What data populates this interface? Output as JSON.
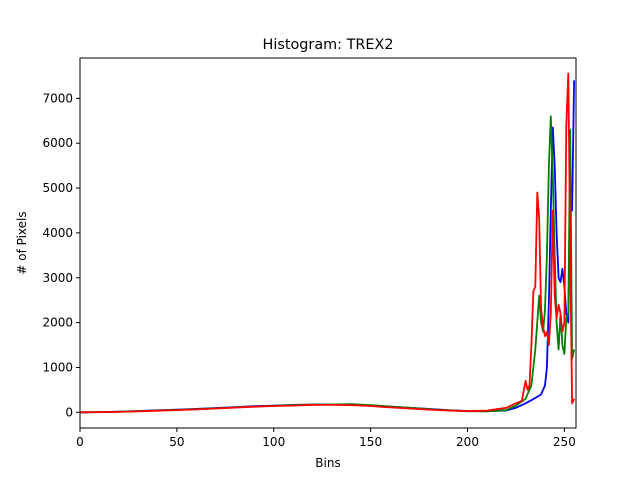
{
  "chart_data": {
    "type": "line",
    "title": "Histogram: TREX2",
    "xlabel": "Bins",
    "ylabel": "# of Pixels",
    "xlim": [
      0,
      256
    ],
    "ylim": [
      -350,
      7900
    ],
    "xticks": [
      0,
      50,
      100,
      150,
      200,
      250
    ],
    "yticks": [
      0,
      1000,
      2000,
      3000,
      4000,
      5000,
      6000,
      7000
    ],
    "grid": false,
    "legend": "none",
    "series": [
      {
        "color": "#0000ff",
        "points": [
          [
            0,
            0
          ],
          [
            10,
            5
          ],
          [
            20,
            15
          ],
          [
            30,
            30
          ],
          [
            40,
            45
          ],
          [
            50,
            60
          ],
          [
            60,
            75
          ],
          [
            70,
            95
          ],
          [
            80,
            115
          ],
          [
            90,
            135
          ],
          [
            100,
            150
          ],
          [
            110,
            165
          ],
          [
            120,
            175
          ],
          [
            130,
            175
          ],
          [
            140,
            170
          ],
          [
            150,
            150
          ],
          [
            160,
            125
          ],
          [
            170,
            100
          ],
          [
            180,
            75
          ],
          [
            190,
            50
          ],
          [
            200,
            30
          ],
          [
            210,
            25
          ],
          [
            220,
            40
          ],
          [
            225,
            100
          ],
          [
            230,
            200
          ],
          [
            235,
            320
          ],
          [
            238,
            400
          ],
          [
            240,
            600
          ],
          [
            241,
            1000
          ],
          [
            242,
            2500
          ],
          [
            243,
            4500
          ],
          [
            244,
            6350
          ],
          [
            245,
            5500
          ],
          [
            246,
            4000
          ],
          [
            247,
            3000
          ],
          [
            248,
            2900
          ],
          [
            249,
            3200
          ],
          [
            250,
            2800
          ],
          [
            251,
            2200
          ],
          [
            252,
            2000
          ],
          [
            253,
            4600
          ],
          [
            254,
            4500
          ],
          [
            255,
            7400
          ]
        ]
      },
      {
        "color": "#008000",
        "points": [
          [
            0,
            0
          ],
          [
            10,
            5
          ],
          [
            20,
            12
          ],
          [
            30,
            25
          ],
          [
            40,
            40
          ],
          [
            50,
            55
          ],
          [
            60,
            70
          ],
          [
            70,
            90
          ],
          [
            80,
            110
          ],
          [
            90,
            130
          ],
          [
            100,
            145
          ],
          [
            110,
            160
          ],
          [
            120,
            170
          ],
          [
            130,
            175
          ],
          [
            140,
            180
          ],
          [
            150,
            160
          ],
          [
            160,
            130
          ],
          [
            170,
            100
          ],
          [
            180,
            70
          ],
          [
            190,
            45
          ],
          [
            200,
            25
          ],
          [
            210,
            20
          ],
          [
            220,
            50
          ],
          [
            225,
            150
          ],
          [
            230,
            300
          ],
          [
            233,
            600
          ],
          [
            235,
            1400
          ],
          [
            237,
            2600
          ],
          [
            238,
            2000
          ],
          [
            239,
            1800
          ],
          [
            240,
            2300
          ],
          [
            241,
            3500
          ],
          [
            242,
            5500
          ],
          [
            243,
            6600
          ],
          [
            244,
            5300
          ],
          [
            245,
            3500
          ],
          [
            246,
            2000
          ],
          [
            247,
            1400
          ],
          [
            248,
            2200
          ],
          [
            249,
            1500
          ],
          [
            250,
            1300
          ],
          [
            251,
            2100
          ],
          [
            252,
            2200
          ],
          [
            253,
            6300
          ],
          [
            254,
            1200
          ],
          [
            255,
            1400
          ]
        ]
      },
      {
        "color": "#ff0000",
        "points": [
          [
            0,
            0
          ],
          [
            10,
            5
          ],
          [
            20,
            10
          ],
          [
            30,
            20
          ],
          [
            40,
            35
          ],
          [
            50,
            50
          ],
          [
            60,
            65
          ],
          [
            70,
            85
          ],
          [
            80,
            105
          ],
          [
            90,
            125
          ],
          [
            100,
            140
          ],
          [
            110,
            150
          ],
          [
            120,
            165
          ],
          [
            130,
            165
          ],
          [
            140,
            160
          ],
          [
            150,
            140
          ],
          [
            160,
            110
          ],
          [
            170,
            85
          ],
          [
            180,
            60
          ],
          [
            190,
            40
          ],
          [
            200,
            25
          ],
          [
            210,
            35
          ],
          [
            220,
            100
          ],
          [
            225,
            200
          ],
          [
            228,
            250
          ],
          [
            230,
            700
          ],
          [
            231,
            500
          ],
          [
            232,
            600
          ],
          [
            233,
            1500
          ],
          [
            234,
            2700
          ],
          [
            235,
            2800
          ],
          [
            236,
            4900
          ],
          [
            237,
            4300
          ],
          [
            238,
            2300
          ],
          [
            239,
            1900
          ],
          [
            240,
            1700
          ],
          [
            241,
            1800
          ],
          [
            242,
            1500
          ],
          [
            243,
            2200
          ],
          [
            244,
            4500
          ],
          [
            245,
            2600
          ],
          [
            246,
            2100
          ],
          [
            247,
            2400
          ],
          [
            248,
            2200
          ],
          [
            249,
            1800
          ],
          [
            250,
            2000
          ],
          [
            251,
            6400
          ],
          [
            252,
            7550
          ],
          [
            253,
            3600
          ],
          [
            254,
            200
          ],
          [
            255,
            300
          ]
        ]
      }
    ]
  }
}
